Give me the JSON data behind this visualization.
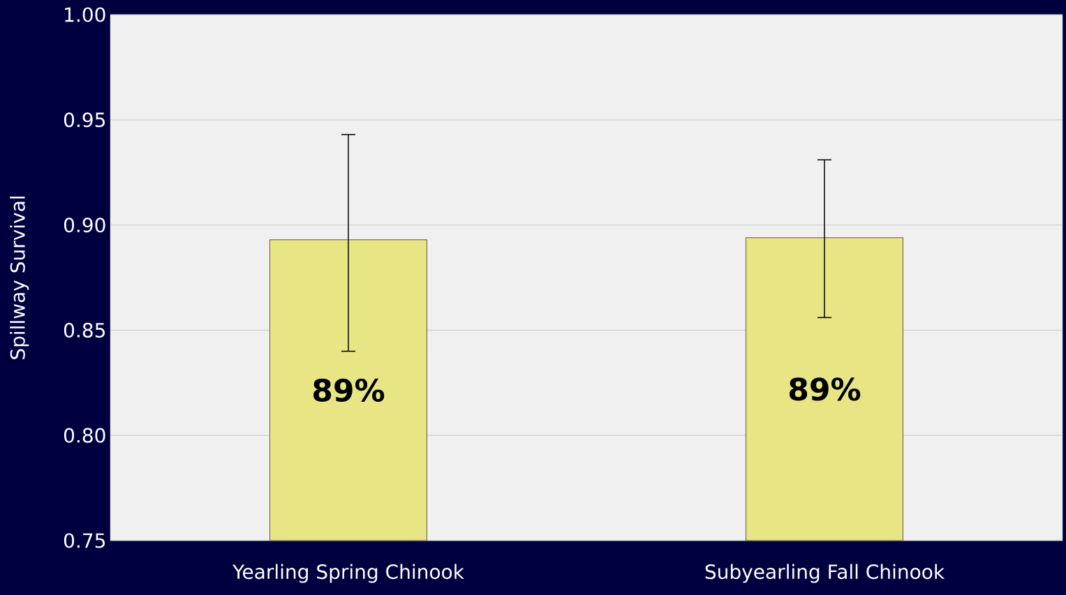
{
  "chart_data": {
    "type": "bar",
    "ylabel": "Spillway Survival",
    "categories": [
      "Yearling Spring Chinook",
      "Subyearling Fall Chinook"
    ],
    "values": [
      0.893,
      0.894
    ],
    "errors": [
      [
        0.84,
        0.943
      ],
      [
        0.856,
        0.931
      ]
    ],
    "value_labels": [
      "89%",
      "89%"
    ],
    "color": "#e8e585",
    "ylim": [
      0.75,
      1.0
    ],
    "yticks": [
      {
        "value": 0.75,
        "label": "0.75"
      },
      {
        "value": 0.8,
        "label": "0.80"
      },
      {
        "value": 0.85,
        "label": "0.85"
      },
      {
        "value": 0.9,
        "label": "0.90"
      },
      {
        "value": 0.95,
        "label": "0.95"
      },
      {
        "value": 1.0,
        "label": "1.00"
      }
    ],
    "grid": "y"
  }
}
